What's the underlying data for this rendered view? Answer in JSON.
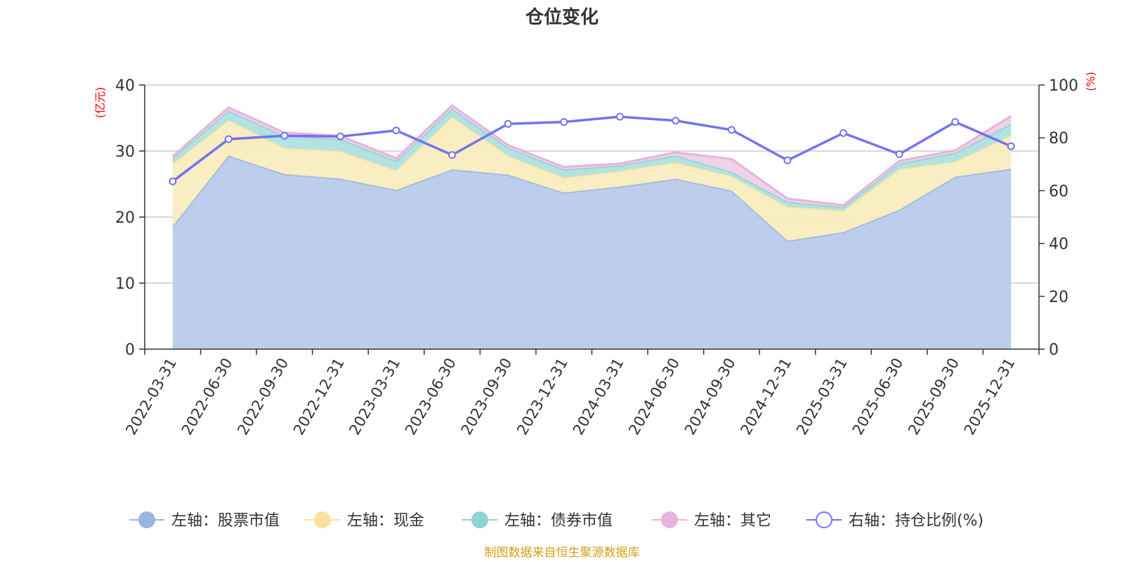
{
  "chart_data": {
    "type": "area",
    "title": "仓位变化",
    "left_axis_unit": "(亿元)",
    "right_axis_unit": "(%)",
    "categories": [
      "2022-03-31",
      "2022-06-30",
      "2022-09-30",
      "2022-12-31",
      "2023-03-31",
      "2023-06-30",
      "2023-09-30",
      "2023-12-31",
      "2024-03-31",
      "2024-06-30",
      "2024-09-30",
      "2024-12-31",
      "2025-03-31",
      "2025-06-30",
      "2025-09-30",
      "2025-12-31"
    ],
    "left_ylim": [
      0,
      40
    ],
    "left_ticks": [
      0,
      10,
      20,
      30,
      40
    ],
    "right_ylim": [
      0,
      100
    ],
    "right_ticks": [
      0,
      20,
      40,
      60,
      80,
      100
    ],
    "stacked_series": [
      {
        "name": "左轴：股票市值",
        "color": "#9bb5e0",
        "fill": "#b8cbea",
        "values": [
          18.6,
          29.3,
          26.5,
          25.8,
          24.1,
          27.2,
          26.4,
          23.7,
          24.6,
          25.8,
          24.0,
          16.4,
          17.7,
          21.1,
          26.1,
          27.3
        ]
      },
      {
        "name": "左轴：现金",
        "color": "#f7e3a0",
        "fill": "#f9ecbf",
        "values": [
          9.5,
          5.4,
          4.0,
          4.2,
          3.0,
          8.0,
          2.9,
          2.3,
          2.4,
          2.5,
          2.2,
          5.2,
          3.3,
          6.2,
          2.3,
          5.1
        ]
      },
      {
        "name": "左轴：债券市值",
        "color": "#8fd3d3",
        "fill": "#afe0e0",
        "values": [
          0.8,
          1.4,
          1.8,
          1.8,
          1.4,
          1.2,
          1.2,
          1.2,
          0.8,
          1.0,
          0.6,
          0.7,
          0.5,
          0.8,
          1.3,
          1.7
        ]
      },
      {
        "name": "左轴：其它",
        "color": "#e7b3da",
        "fill": "#eed0e7",
        "values": [
          0.3,
          0.5,
          0.5,
          0.5,
          0.4,
          0.5,
          0.4,
          0.4,
          0.3,
          0.5,
          2.0,
          0.5,
          0.3,
          0.4,
          0.4,
          1.2
        ]
      }
    ],
    "line_series": {
      "name": "右轴：持仓比例(%)",
      "color": "#7373f0",
      "values": [
        63.5,
        79.5,
        80.8,
        80.5,
        82.8,
        73.5,
        85.3,
        86.0,
        88.0,
        86.5,
        83.0,
        71.5,
        81.8,
        73.8,
        86.0,
        76.8
      ]
    },
    "legend": [
      "左轴：股票市值",
      "左轴：现金",
      "左轴：债券市值",
      "左轴：其它",
      "右轴：持仓比例(%)"
    ],
    "legend_position": "bottom",
    "grid": true
  },
  "footer": {
    "source": "制图数据来自恒生聚源数据库"
  }
}
